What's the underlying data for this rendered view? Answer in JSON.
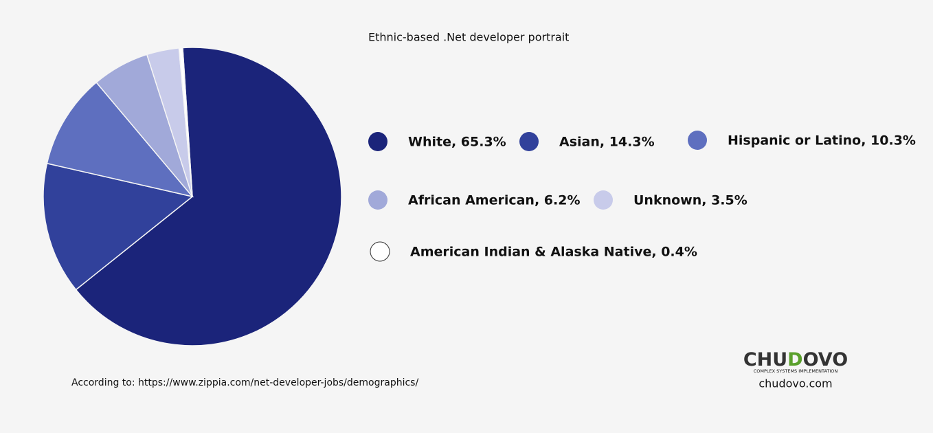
{
  "chart_data": {
    "type": "pie",
    "title": "Ethnic-based .Net developer portrait",
    "categories": [
      "White",
      "Asian",
      "Hispanic or Latino",
      "African American",
      "Unknown",
      "American Indian & Alaska Native"
    ],
    "values": [
      65.3,
      14.3,
      10.3,
      6.2,
      3.5,
      0.4
    ],
    "value_labels": [
      "White, 65.3%",
      "Asian, 14.3%",
      "Hispanic or Latino, 10.3%",
      "African American, 6.2%",
      "Unknown, 3.5%",
      "American Indian & Alaska Native, 0.4%"
    ],
    "colors": [
      "#1b247a",
      "#31419b",
      "#5e6fbf",
      "#a1a9d9",
      "#c8cbea",
      "#ffffff"
    ],
    "source": "According to:  https://www.zippia.com/net-developer-jobs/demographics/",
    "logo": {
      "parts": [
        "CHU",
        "D",
        "OVO"
      ],
      "tagline": "COMPLEX SYSTEMS IMPLEMENTATION",
      "site": "chudovo.com"
    }
  }
}
